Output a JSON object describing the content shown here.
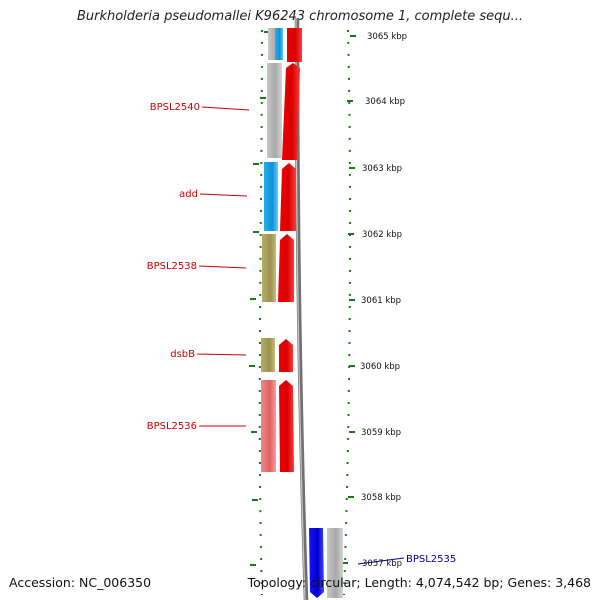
{
  "title": "Burkholderia pseudomallei K96243 chromosome 1, complete sequ...",
  "accession_text": "Accession: NC_006350",
  "summary_text": "Topology: circular; Length: 4,074,542 bp; Genes: 3,468",
  "colors": {
    "scale": "#1a7a1a",
    "label_forward": "#cc0000",
    "label_reverse": "#000099",
    "arrow_forward": "#ee0000",
    "arrow_reverse": "#0000ee",
    "backbone": "#808080"
  },
  "scale_labels": [
    "3065 kbp",
    "3064 kbp",
    "3063 kbp",
    "3062 kbp",
    "3061 kbp",
    "3060 kbp",
    "3059 kbp",
    "3058 kbp",
    "3057 kbp"
  ],
  "gene_labels": [
    {
      "name": "BPSL2540",
      "strand": "forward"
    },
    {
      "name": "add",
      "strand": "forward"
    },
    {
      "name": "BPSL2538",
      "strand": "forward"
    },
    {
      "name": "dsbB",
      "strand": "forward"
    },
    {
      "name": "BPSL2536",
      "strand": "forward"
    },
    {
      "name": "BPSL2535",
      "strand": "reverse"
    }
  ]
}
